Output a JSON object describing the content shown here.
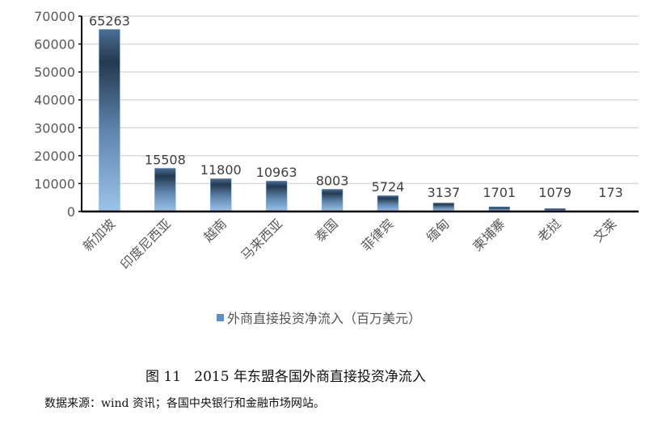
{
  "chart_data": {
    "type": "bar",
    "title": "",
    "categories": [
      "新加坡",
      "印度尼西亚",
      "越南",
      "马来西亚",
      "泰国",
      "菲律宾",
      "缅甸",
      "柬埔寨",
      "老挝",
      "文莱"
    ],
    "series": [
      {
        "name": "外商直接投资净流入（百万美元）",
        "values": [
          65263,
          15508,
          11800,
          10963,
          8003,
          5724,
          3137,
          1701,
          1079,
          173
        ]
      }
    ],
    "ylim": [
      0,
      70000
    ],
    "yticks": [
      "0",
      "10000",
      "20000",
      "30000",
      "40000",
      "50000",
      "60000",
      "70000"
    ],
    "grid": true,
    "legend_position": "bottom",
    "xlabel": "",
    "ylabel": ""
  },
  "caption": "图 11   2015 年东盟各国外商直接投资净流入",
  "source": "数据来源：wind 资讯；各国中央银行和金融市场网站。"
}
